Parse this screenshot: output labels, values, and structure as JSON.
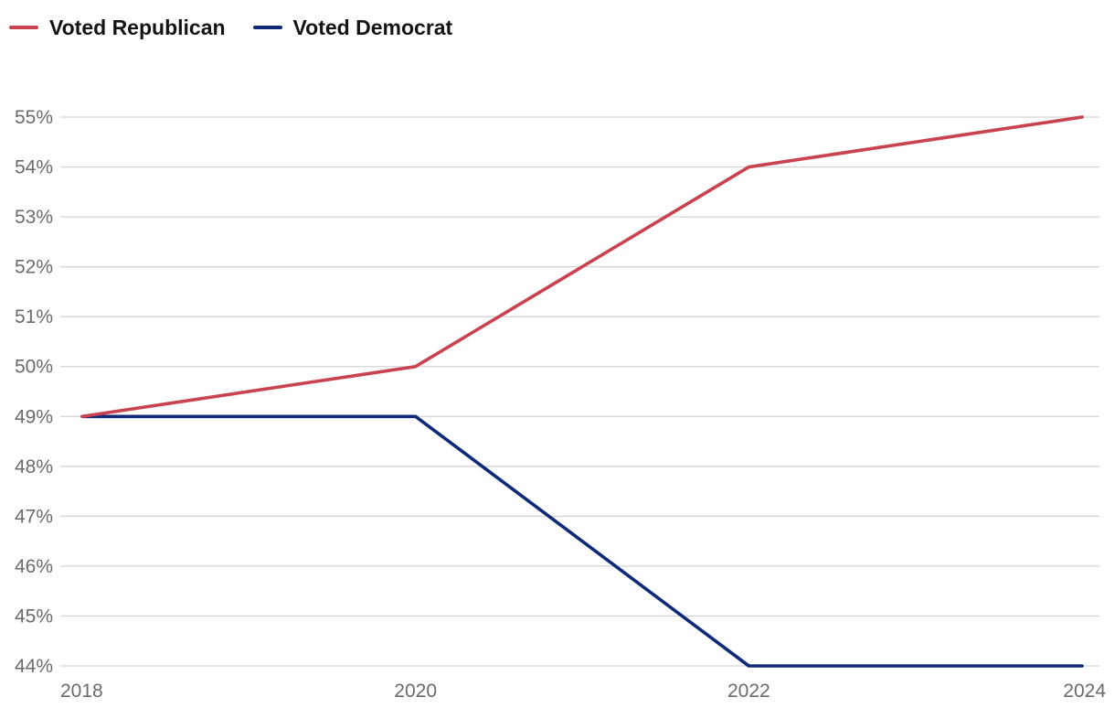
{
  "colors": {
    "republican": "#c8434f",
    "democrat": "#0f2a78",
    "grid": "#d4d4d4",
    "tick_text": "#6b6b6b"
  },
  "legend": [
    {
      "label": "Voted Republican",
      "color": "#c8434f"
    },
    {
      "label": "Voted Democrat",
      "color": "#0f2a78"
    }
  ],
  "chart_data": {
    "type": "line",
    "title": "",
    "xlabel": "",
    "ylabel": "",
    "x": [
      2018,
      2020,
      2022,
      2024
    ],
    "x_tick_labels": [
      "2018",
      "2020",
      "2022",
      "2024"
    ],
    "y_ticks": [
      44,
      45,
      46,
      47,
      48,
      49,
      50,
      51,
      52,
      53,
      54,
      55
    ],
    "y_tick_labels": [
      "44%",
      "45%",
      "46%",
      "47%",
      "48%",
      "49%",
      "50%",
      "51%",
      "52%",
      "53%",
      "54%",
      "55%"
    ],
    "ylim": [
      44,
      55
    ],
    "grid": "horizontal",
    "legend_position": "top-left",
    "series": [
      {
        "name": "Voted Republican",
        "color": "#c8434f",
        "values": [
          49,
          50,
          54,
          55
        ]
      },
      {
        "name": "Voted Democrat",
        "color": "#0f2a78",
        "values": [
          49,
          49,
          44,
          44
        ]
      }
    ]
  }
}
